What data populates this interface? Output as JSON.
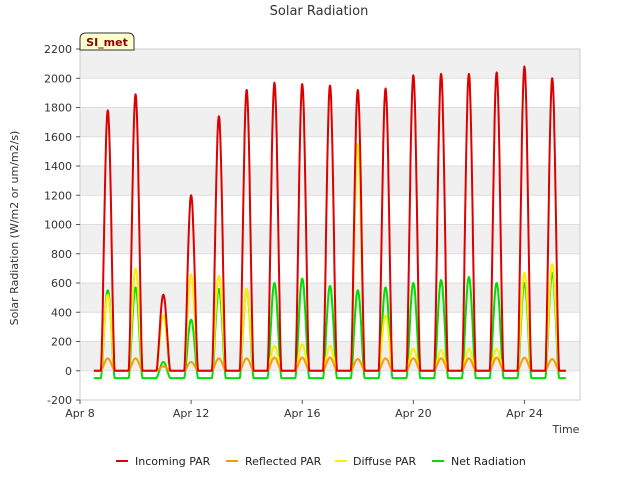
{
  "chart_data": {
    "type": "line",
    "title": "Solar Radiation",
    "xlabel": "Time",
    "ylabel": "Solar Radiation (W/m2 or um/m2/s)",
    "badge": "SI_met",
    "ylim": [
      -200,
      2200
    ],
    "yticks": [
      -200,
      0,
      200,
      400,
      600,
      800,
      1000,
      1200,
      1400,
      1600,
      1800,
      2000,
      2200
    ],
    "xlim": [
      0,
      18
    ],
    "xticks": [
      {
        "day": 0,
        "label": "Apr 8"
      },
      {
        "day": 4,
        "label": "Apr 12"
      },
      {
        "day": 8,
        "label": "Apr 16"
      },
      {
        "day": 12,
        "label": "Apr 20"
      },
      {
        "day": 16,
        "label": "Apr 24"
      }
    ],
    "days": [
      8,
      9,
      10,
      11,
      12,
      13,
      14,
      15,
      16,
      17,
      18,
      19,
      20,
      21,
      22,
      23,
      24
    ],
    "sunrise_offset": 0.25,
    "day_length": 0.5,
    "series": [
      {
        "name": "Incoming PAR",
        "color": "#dd0000",
        "night": 0,
        "peaks": [
          1780,
          1890,
          520,
          1200,
          1740,
          1920,
          1970,
          1960,
          1950,
          1920,
          1930,
          2020,
          2030,
          2030,
          2040,
          2080,
          2000
        ]
      },
      {
        "name": "Reflected PAR",
        "color": "#ff9900",
        "night": 0,
        "peaks": [
          85,
          85,
          30,
          60,
          85,
          85,
          90,
          90,
          90,
          80,
          85,
          85,
          85,
          85,
          90,
          90,
          80
        ]
      },
      {
        "name": "Diffuse PAR",
        "color": "#ffee00",
        "night": 0,
        "peaks": [
          520,
          700,
          380,
          660,
          650,
          560,
          170,
          180,
          170,
          1550,
          380,
          150,
          140,
          150,
          150,
          670,
          730
        ]
      },
      {
        "name": "Net Radiation",
        "color": "#00dd00",
        "night": -50,
        "peaks": [
          550,
          570,
          60,
          350,
          560,
          560,
          600,
          630,
          580,
          550,
          570,
          600,
          620,
          640,
          600,
          600,
          670
        ]
      }
    ]
  },
  "legend": {
    "items": [
      {
        "label": "Incoming PAR",
        "color": "#dd0000"
      },
      {
        "label": "Reflected PAR",
        "color": "#ff9900"
      },
      {
        "label": "Diffuse PAR",
        "color": "#ffee00"
      },
      {
        "label": "Net Radiation",
        "color": "#00dd00"
      }
    ]
  }
}
